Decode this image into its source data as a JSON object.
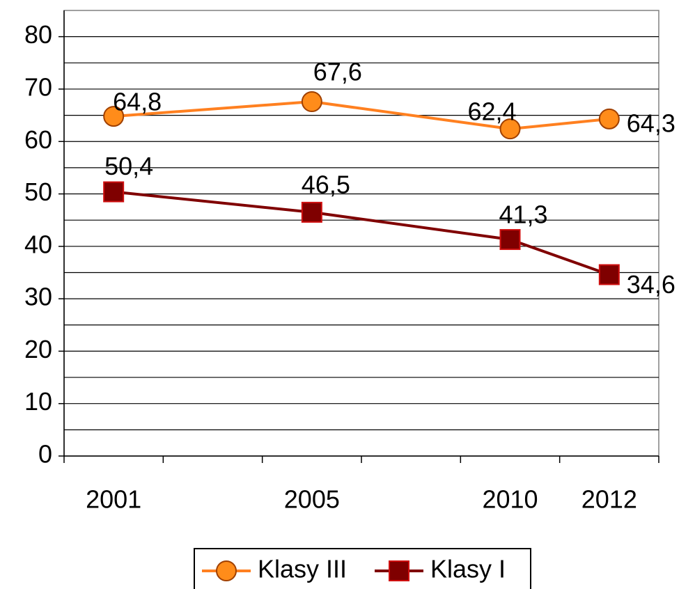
{
  "chart_data": {
    "type": "line",
    "categories": [
      "2001",
      null,
      "2005",
      null,
      "2010",
      "2012"
    ],
    "series": [
      {
        "name": "Klasy III",
        "color": "#ff8020",
        "marker": "circle",
        "values": [
          64.8,
          null,
          67.6,
          null,
          62.4,
          64.3
        ],
        "value_labels": [
          "64,8",
          null,
          "67,6",
          null,
          "62,4",
          "64,3"
        ]
      },
      {
        "name": "Klasy I",
        "color": "#800000",
        "marker": "square",
        "values": [
          50.4,
          null,
          46.5,
          null,
          41.3,
          34.6
        ],
        "value_labels": [
          "50,4",
          null,
          "46,5",
          null,
          "41,3",
          "34,6"
        ]
      }
    ],
    "ylim": [
      0,
      85
    ],
    "yticks": [
      0,
      10,
      20,
      30,
      40,
      50,
      60,
      70,
      80
    ],
    "y_minor_ticks": [
      5,
      15,
      25,
      35,
      45,
      55,
      65,
      75
    ],
    "grid": true,
    "legend": "bottom"
  }
}
